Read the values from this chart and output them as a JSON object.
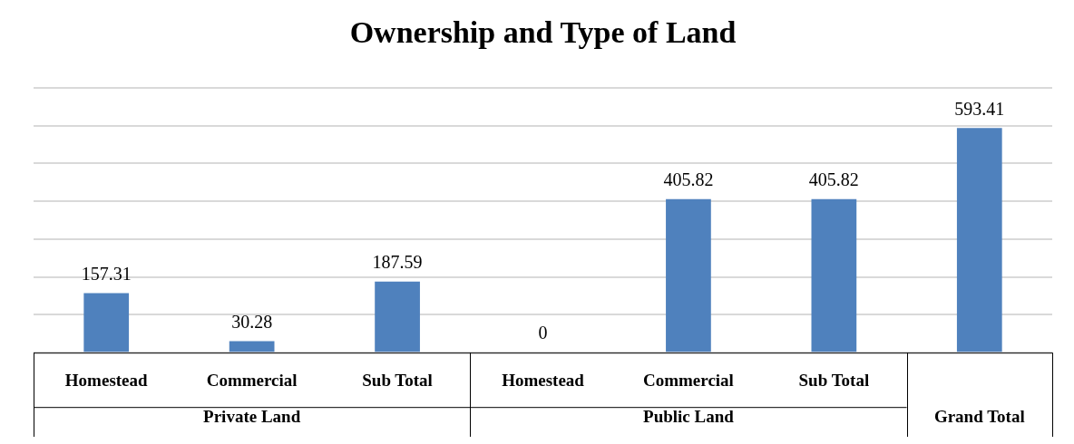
{
  "chart_data": {
    "type": "bar",
    "title": "Ownership and Type of Land",
    "categories": [
      "Homestead",
      "Commercial",
      "Sub Total",
      "Homestead",
      "Commercial",
      "Sub Total",
      null
    ],
    "values": [
      157.31,
      30.28,
      187.59,
      0,
      405.82,
      405.82,
      593.41
    ],
    "color": "#4f81bd",
    "ylim": [
      0,
      700
    ],
    "yticks": [
      0,
      100,
      200,
      300,
      400,
      500,
      600,
      700
    ],
    "tick_labels": "x",
    "grid": "y",
    "legend": false,
    "data_labels": true,
    "annotations": [
      "Private Land",
      "Public Land",
      "Grand Total"
    ]
  }
}
